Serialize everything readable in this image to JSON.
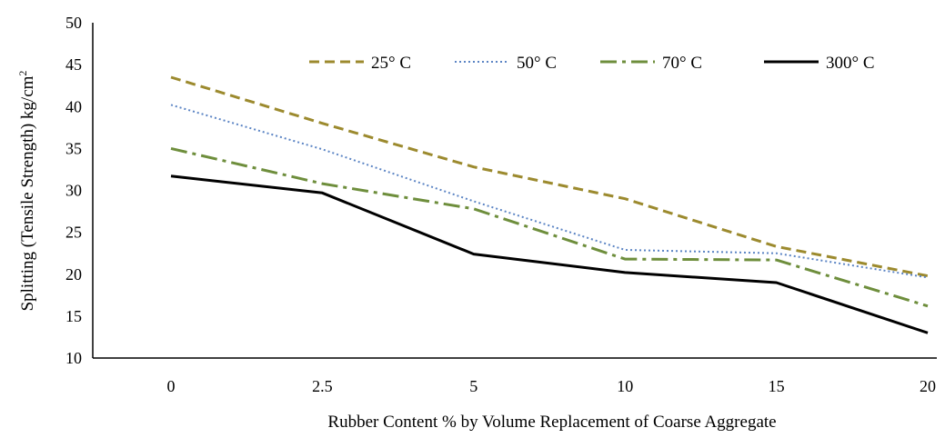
{
  "chart_data": {
    "type": "line",
    "title": "",
    "xlabel": "Rubber Content % by Volume  Replacement of Coarse Aggregate",
    "ylabel": "Splitting (Tensile Strength) kg/cm",
    "ylabel_superscript": "2",
    "categories": [
      "0",
      "2.5",
      "5",
      "10",
      "15",
      "20"
    ],
    "ylim": [
      10,
      50
    ],
    "yticks": [
      10,
      15,
      20,
      25,
      30,
      35,
      40,
      45,
      50
    ],
    "grid": false,
    "legend_position": "top-right",
    "series": [
      {
        "name": "25° C",
        "values": [
          43.5,
          38.0,
          32.8,
          29.0,
          23.3,
          19.8
        ],
        "color": "#9c8a2e",
        "style": "dashed"
      },
      {
        "name": "50° C",
        "values": [
          40.2,
          34.9,
          28.7,
          22.9,
          22.5,
          19.6
        ],
        "color": "#5b84c4",
        "style": "dotted"
      },
      {
        "name": "70° C",
        "values": [
          35.0,
          30.8,
          27.8,
          21.8,
          21.7,
          16.2
        ],
        "color": "#6e8e3c",
        "style": "dashdot"
      },
      {
        "name": "300° C",
        "values": [
          31.7,
          29.7,
          22.4,
          20.2,
          19.0,
          13.0
        ],
        "color": "#000000",
        "style": "solid"
      }
    ]
  }
}
